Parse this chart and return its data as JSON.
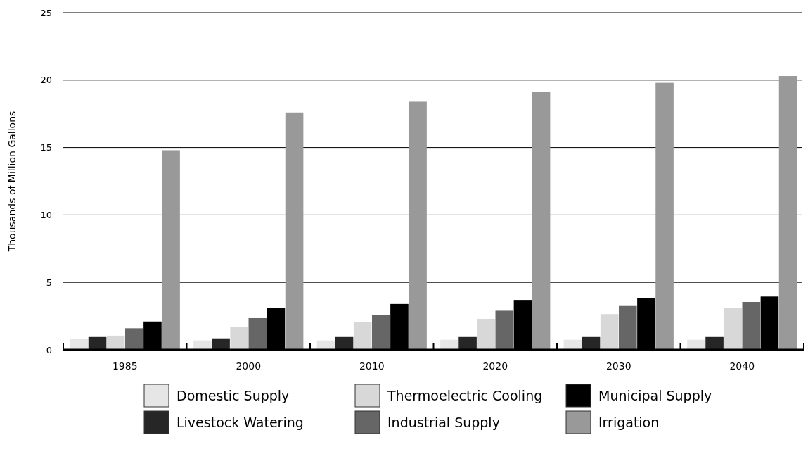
{
  "chart_data": {
    "type": "bar",
    "ylabel": "Thousands of Million Gallons",
    "categories": [
      "1985",
      "2000",
      "2010",
      "2020",
      "2030",
      "2040"
    ],
    "series": [
      {
        "name": "Domestic Supply",
        "color": "#e6e6e6",
        "values": [
          0.8,
          0.7,
          0.7,
          0.75,
          0.75,
          0.75
        ]
      },
      {
        "name": "Livestock Watering",
        "color": "#262626",
        "values": [
          0.95,
          0.85,
          0.95,
          0.95,
          0.95,
          0.95
        ]
      },
      {
        "name": "Thermoelectric Cooling",
        "color": "#d8d8d8",
        "values": [
          1.05,
          1.7,
          2.05,
          2.3,
          2.65,
          3.1
        ]
      },
      {
        "name": "Industrial Supply",
        "color": "#666666",
        "values": [
          1.6,
          2.35,
          2.6,
          2.9,
          3.25,
          3.55
        ]
      },
      {
        "name": "Municipal Supply",
        "color": "#000000",
        "values": [
          2.1,
          3.1,
          3.4,
          3.7,
          3.85,
          3.95
        ]
      },
      {
        "name": "Irrigation",
        "color": "#999999",
        "values": [
          14.8,
          17.6,
          18.4,
          19.15,
          19.8,
          20.3
        ]
      }
    ],
    "ylim": [
      0,
      25
    ],
    "yticks": [
      0,
      5,
      10,
      15,
      20,
      25
    ],
    "grid": "y",
    "legend": "bottom"
  }
}
